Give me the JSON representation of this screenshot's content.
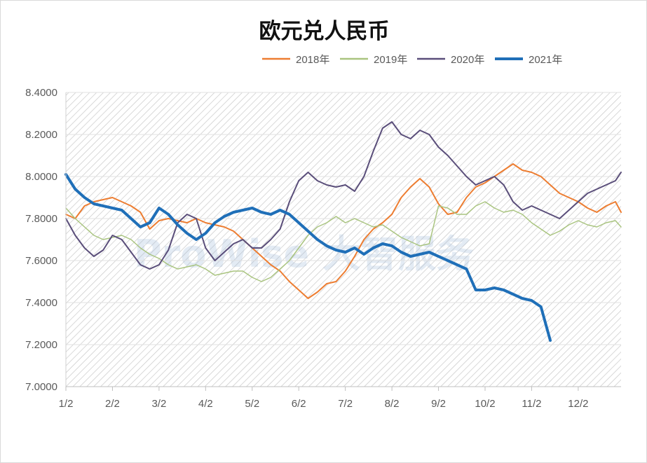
{
  "chart_data": {
    "type": "line",
    "title": "欧元兑人民币",
    "xlabel": "",
    "ylabel": "",
    "ylim": [
      7.0,
      8.4
    ],
    "yticks": [
      "7.0000",
      "7.2000",
      "7.4000",
      "7.6000",
      "7.8000",
      "8.0000",
      "8.2000",
      "8.4000"
    ],
    "xticks": [
      "1/2",
      "2/2",
      "3/2",
      "4/2",
      "5/2",
      "6/2",
      "7/2",
      "8/2",
      "9/2",
      "10/2",
      "11/2",
      "12/2"
    ],
    "x_unit": "month index (0 = Jan 2, 11 = Dec 2)",
    "xlim": [
      0,
      11.92
    ],
    "legend_position": "top",
    "watermark": "ProWise 大智服务",
    "series": [
      {
        "name": "2018年",
        "color": "#ed7d31",
        "width": 2,
        "x": [
          0,
          0.2,
          0.4,
          0.6,
          0.8,
          1.0,
          1.2,
          1.4,
          1.6,
          1.8,
          2.0,
          2.2,
          2.4,
          2.6,
          2.8,
          3.0,
          3.2,
          3.4,
          3.6,
          3.8,
          4.0,
          4.2,
          4.4,
          4.6,
          4.8,
          5.0,
          5.2,
          5.4,
          5.6,
          5.8,
          6.0,
          6.2,
          6.4,
          6.6,
          6.8,
          7.0,
          7.2,
          7.4,
          7.6,
          7.8,
          8.0,
          8.2,
          8.4,
          8.6,
          8.8,
          9.0,
          9.2,
          9.4,
          9.6,
          9.8,
          10.0,
          10.2,
          10.4,
          10.6,
          10.8,
          11.0,
          11.2,
          11.4,
          11.6,
          11.8,
          11.92
        ],
        "values": [
          7.82,
          7.8,
          7.86,
          7.88,
          7.89,
          7.9,
          7.88,
          7.86,
          7.83,
          7.75,
          7.79,
          7.8,
          7.79,
          7.78,
          7.8,
          7.78,
          7.77,
          7.76,
          7.74,
          7.7,
          7.66,
          7.62,
          7.58,
          7.55,
          7.5,
          7.46,
          7.42,
          7.45,
          7.49,
          7.5,
          7.55,
          7.62,
          7.7,
          7.75,
          7.78,
          7.82,
          7.9,
          7.95,
          7.99,
          7.95,
          7.87,
          7.82,
          7.83,
          7.9,
          7.95,
          7.97,
          8.0,
          8.03,
          8.06,
          8.03,
          8.02,
          8.0,
          7.96,
          7.92,
          7.9,
          7.88,
          7.85,
          7.83,
          7.86,
          7.88,
          7.83
        ]
      },
      {
        "name": "2019年",
        "color": "#a9c47f",
        "width": 1.5,
        "x": [
          0,
          0.2,
          0.4,
          0.6,
          0.8,
          1.0,
          1.2,
          1.4,
          1.6,
          1.8,
          2.0,
          2.2,
          2.4,
          2.6,
          2.8,
          3.0,
          3.2,
          3.4,
          3.6,
          3.8,
          4.0,
          4.2,
          4.4,
          4.6,
          4.8,
          5.0,
          5.2,
          5.4,
          5.6,
          5.8,
          6.0,
          6.2,
          6.4,
          6.6,
          6.8,
          7.0,
          7.2,
          7.4,
          7.6,
          7.8,
          8.0,
          8.2,
          8.4,
          8.6,
          8.8,
          9.0,
          9.2,
          9.4,
          9.6,
          9.8,
          10.0,
          10.2,
          10.4,
          10.6,
          10.8,
          11.0,
          11.2,
          11.4,
          11.6,
          11.8,
          11.92
        ],
        "values": [
          7.85,
          7.8,
          7.76,
          7.72,
          7.7,
          7.71,
          7.72,
          7.7,
          7.66,
          7.63,
          7.61,
          7.58,
          7.56,
          7.57,
          7.58,
          7.56,
          7.53,
          7.54,
          7.55,
          7.55,
          7.52,
          7.5,
          7.52,
          7.56,
          7.6,
          7.66,
          7.72,
          7.76,
          7.78,
          7.81,
          7.78,
          7.8,
          7.78,
          7.76,
          7.77,
          7.74,
          7.71,
          7.69,
          7.67,
          7.68,
          7.86,
          7.85,
          7.82,
          7.82,
          7.86,
          7.88,
          7.85,
          7.83,
          7.84,
          7.82,
          7.78,
          7.75,
          7.72,
          7.74,
          7.77,
          7.79,
          7.77,
          7.76,
          7.78,
          7.79,
          7.76
        ]
      },
      {
        "name": "2020年",
        "color": "#5a4e7a",
        "width": 2,
        "x": [
          0,
          0.2,
          0.4,
          0.6,
          0.8,
          1.0,
          1.2,
          1.4,
          1.6,
          1.8,
          2.0,
          2.2,
          2.4,
          2.6,
          2.8,
          3.0,
          3.2,
          3.4,
          3.6,
          3.8,
          4.0,
          4.2,
          4.4,
          4.6,
          4.8,
          5.0,
          5.2,
          5.4,
          5.6,
          5.8,
          6.0,
          6.2,
          6.4,
          6.6,
          6.8,
          7.0,
          7.2,
          7.4,
          7.6,
          7.8,
          8.0,
          8.2,
          8.4,
          8.6,
          8.8,
          9.0,
          9.2,
          9.4,
          9.6,
          9.8,
          10.0,
          10.2,
          10.4,
          10.6,
          10.8,
          11.0,
          11.2,
          11.4,
          11.6,
          11.8,
          11.92
        ],
        "values": [
          7.8,
          7.72,
          7.66,
          7.62,
          7.65,
          7.72,
          7.7,
          7.64,
          7.58,
          7.56,
          7.58,
          7.65,
          7.78,
          7.82,
          7.8,
          7.66,
          7.6,
          7.64,
          7.68,
          7.7,
          7.66,
          7.66,
          7.7,
          7.75,
          7.88,
          7.98,
          8.02,
          7.98,
          7.96,
          7.95,
          7.96,
          7.93,
          8.0,
          8.12,
          8.23,
          8.26,
          8.2,
          8.18,
          8.22,
          8.2,
          8.14,
          8.1,
          8.05,
          8.0,
          7.96,
          7.98,
          8.0,
          7.96,
          7.88,
          7.84,
          7.86,
          7.84,
          7.82,
          7.8,
          7.84,
          7.88,
          7.92,
          7.94,
          7.96,
          7.98,
          8.02
        ]
      },
      {
        "name": "2021年",
        "color": "#1f6fb8",
        "width": 4,
        "x": [
          0,
          0.2,
          0.4,
          0.6,
          0.8,
          1.0,
          1.2,
          1.4,
          1.6,
          1.8,
          2.0,
          2.2,
          2.4,
          2.6,
          2.8,
          3.0,
          3.2,
          3.4,
          3.6,
          3.8,
          4.0,
          4.2,
          4.4,
          4.6,
          4.8,
          5.0,
          5.2,
          5.4,
          5.6,
          5.8,
          6.0,
          6.2,
          6.4,
          6.6,
          6.8,
          7.0,
          7.2,
          7.4,
          7.6,
          7.8,
          8.0,
          8.2,
          8.4,
          8.6,
          8.8,
          9.0,
          9.2,
          9.4,
          9.6,
          9.8,
          10.0,
          10.2,
          10.4,
          10.6,
          10.8,
          11.0,
          11.2,
          11.4,
          11.6,
          11.8,
          11.92
        ],
        "values": [
          8.01,
          7.94,
          7.9,
          7.87,
          7.86,
          7.85,
          7.84,
          7.8,
          7.76,
          7.78,
          7.85,
          7.82,
          7.77,
          7.73,
          7.7,
          7.73,
          7.78,
          7.81,
          7.83,
          7.84,
          7.85,
          7.83,
          7.82,
          7.84,
          7.82,
          7.78,
          7.74,
          7.7,
          7.67,
          7.65,
          7.64,
          7.66,
          7.63,
          7.66,
          7.68,
          7.67,
          7.64,
          7.62,
          7.63,
          7.64,
          7.62,
          7.6,
          7.58,
          7.56,
          7.46,
          7.46,
          7.47,
          7.46,
          7.44,
          7.42,
          7.41,
          7.38,
          7.22,
          null,
          null,
          null,
          null,
          null,
          null,
          null,
          null
        ]
      }
    ]
  }
}
